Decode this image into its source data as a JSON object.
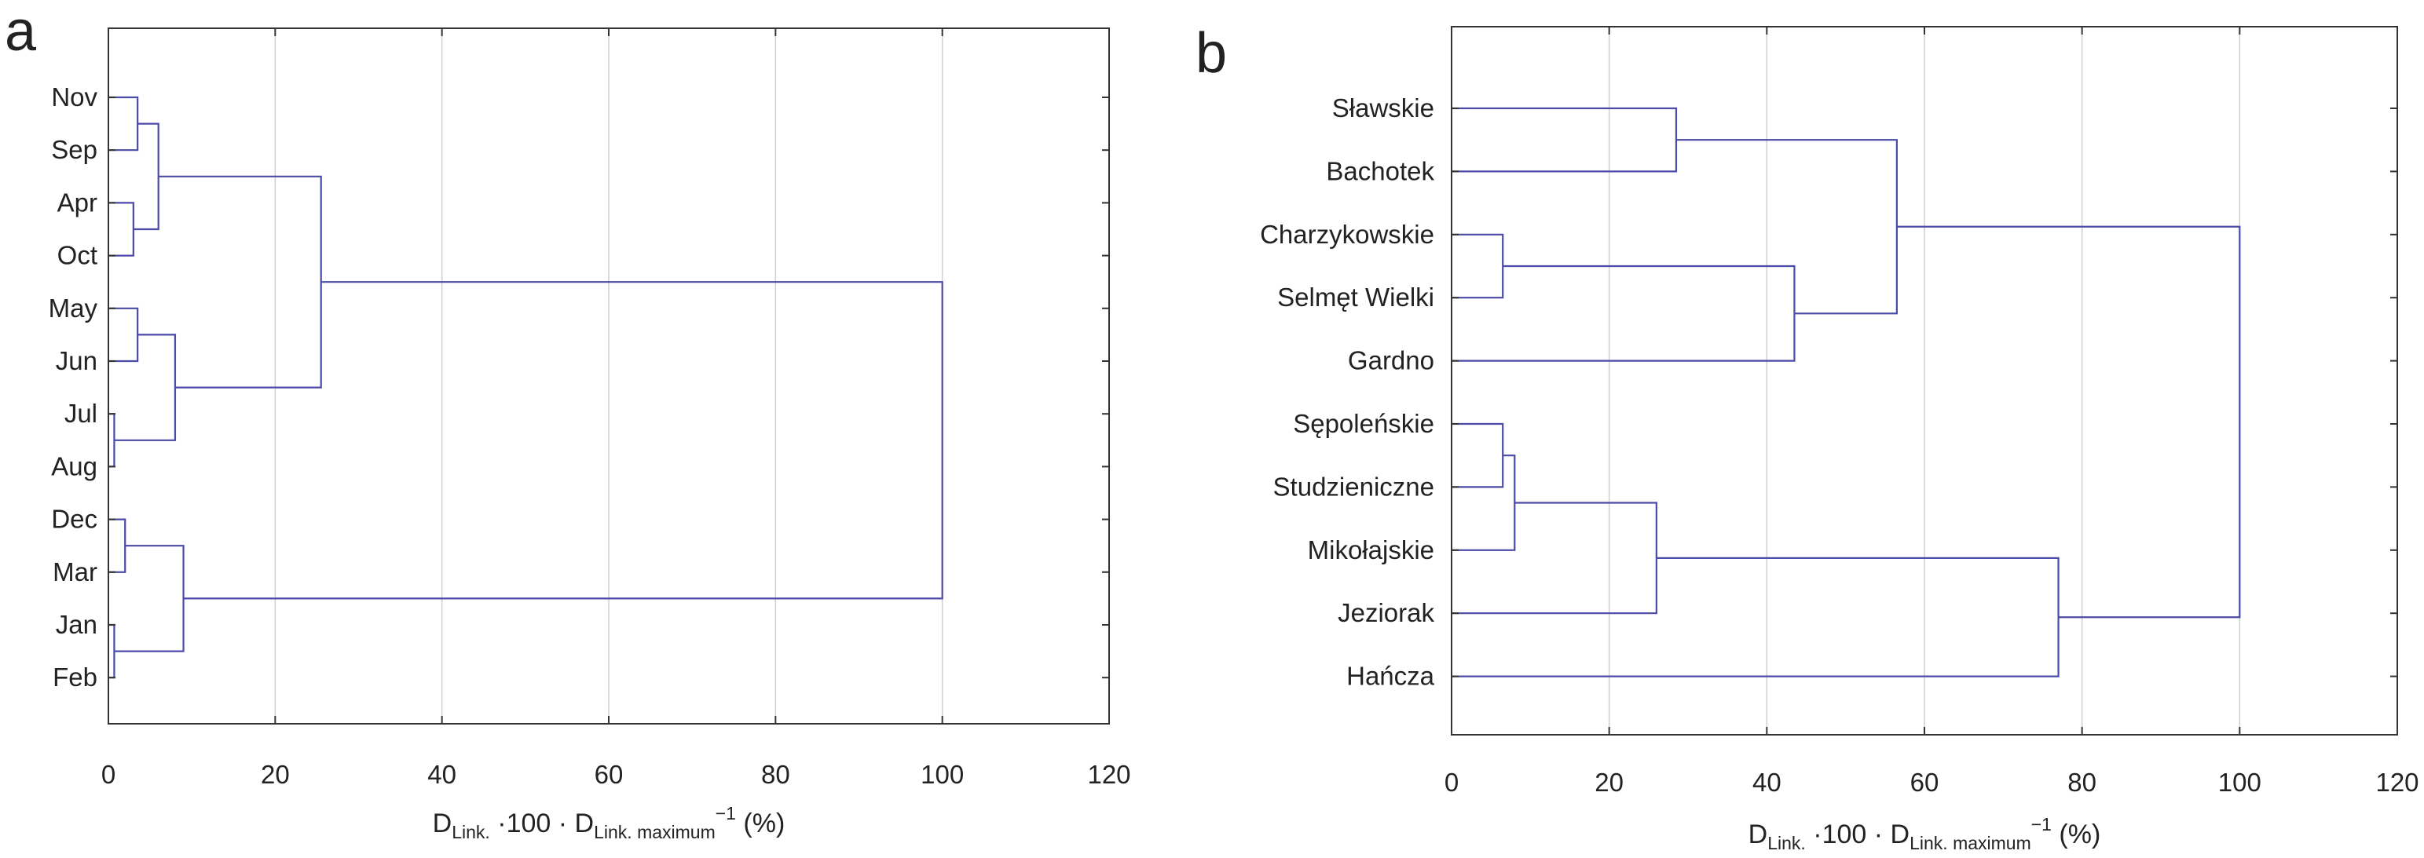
{
  "colors": {
    "link": "#4a4aa8",
    "grid": "#d0d0d0",
    "frame": "#333333",
    "text": "#222222"
  },
  "chart_data": [
    {
      "type": "dendrogram",
      "panel_label": "a",
      "xlabel": {
        "main": "D",
        "sub1": "Link.",
        "mid": " ·100 · D",
        "sub2": "Link. maximum",
        "sup": "−1",
        "tail": " (%)"
      },
      "xlim": [
        0,
        120
      ],
      "xticks": [
        "0",
        "20",
        "40",
        "60",
        "80",
        "100",
        "120"
      ],
      "leaves": [
        "Nov",
        "Sep",
        "Apr",
        "Oct",
        "May",
        "Jun",
        "Jul",
        "Aug",
        "Dec",
        "Mar",
        "Jan",
        "Feb"
      ],
      "merges": [
        {
          "a": "L0",
          "b": "L1",
          "h": 3.5
        },
        {
          "a": "L2",
          "b": "L3",
          "h": 3.0
        },
        {
          "a": "M0",
          "b": "M1",
          "h": 6.0
        },
        {
          "a": "L4",
          "b": "L5",
          "h": 3.5
        },
        {
          "a": "L6",
          "b": "L7",
          "h": 0.7
        },
        {
          "a": "M3",
          "b": "M4",
          "h": 8.0
        },
        {
          "a": "M2",
          "b": "M5",
          "h": 25.5
        },
        {
          "a": "L8",
          "b": "L9",
          "h": 2.0
        },
        {
          "a": "L10",
          "b": "L11",
          "h": 0.7
        },
        {
          "a": "M7",
          "b": "M8",
          "h": 9.0
        },
        {
          "a": "M6",
          "b": "M9",
          "h": 100
        }
      ]
    },
    {
      "type": "dendrogram",
      "panel_label": "b",
      "xlabel": {
        "main": "D",
        "sub1": "Link.",
        "mid": " ·100 · D",
        "sub2": "Link. maximum",
        "sup": "−1",
        "tail": " (%)"
      },
      "xlim": [
        0,
        120
      ],
      "xticks": [
        "0",
        "20",
        "40",
        "60",
        "80",
        "100",
        "120"
      ],
      "leaves": [
        "Sławskie",
        "Bachotek",
        "Charzykowskie",
        "Selmęt Wielki",
        "Gardno",
        "Sępoleńskie",
        "Studzieniczne",
        "Mikołajskie",
        "Jeziorak",
        "Hańcza"
      ],
      "merges": [
        {
          "a": "L0",
          "b": "L1",
          "h": 28.5
        },
        {
          "a": "L2",
          "b": "L3",
          "h": 6.5
        },
        {
          "a": "M1",
          "b": "L4",
          "h": 43.5
        },
        {
          "a": "M0",
          "b": "M2",
          "h": 56.5
        },
        {
          "a": "L5",
          "b": "L6",
          "h": 6.5
        },
        {
          "a": "M4",
          "b": "L7",
          "h": 8.0
        },
        {
          "a": "M5",
          "b": "L8",
          "h": 26.0
        },
        {
          "a": "M6",
          "b": "L9",
          "h": 77.0
        },
        {
          "a": "M3",
          "b": "M7",
          "h": 100
        }
      ]
    }
  ]
}
